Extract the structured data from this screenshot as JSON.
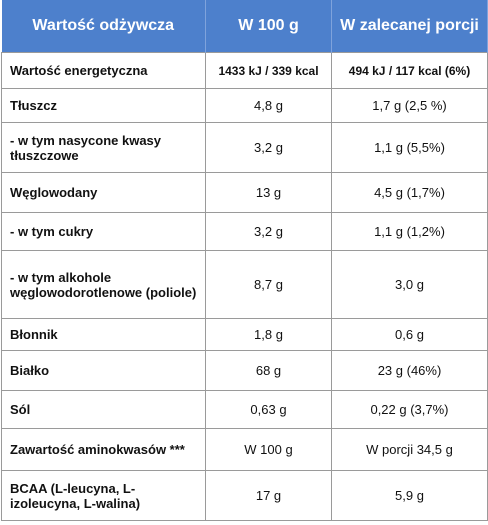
{
  "table": {
    "header": [
      "Wartość odżywcza",
      "W 100 g",
      "W zalecanej porcji"
    ],
    "rows": [
      [
        "Wartość energetyczna",
        "1433 kJ / 339 kcal",
        "494 kJ / 117 kcal (6%)"
      ],
      [
        "Tłuszcz",
        "4,8 g",
        "1,7 g (2,5 %)"
      ],
      [
        "- w tym nasycone kwasy tłuszczowe",
        "3,2 g",
        "1,1 g (5,5%)"
      ],
      [
        "Węglowodany",
        "13 g",
        "4,5 g (1,7%)"
      ],
      [
        "- w tym cukry",
        "3,2 g",
        "1,1 g (1,2%)"
      ],
      [
        "- w tym alkohole węglowodorotlenowe (poliole)",
        "8,7 g",
        "3,0 g"
      ],
      [
        "Błonnik",
        "1,8 g",
        "0,6 g"
      ],
      [
        "Białko",
        "68 g",
        "23 g (46%)"
      ],
      [
        "Sól",
        "0,63 g",
        "0,22 g (3,7%)"
      ],
      [
        "Zawartość aminokwasów ***",
        "W 100 g",
        "W porcji 34,5 g"
      ],
      [
        "BCAA (L-leucyna, L-izoleucyna, L-walina)",
        "17 g",
        "5,9 g"
      ]
    ]
  }
}
